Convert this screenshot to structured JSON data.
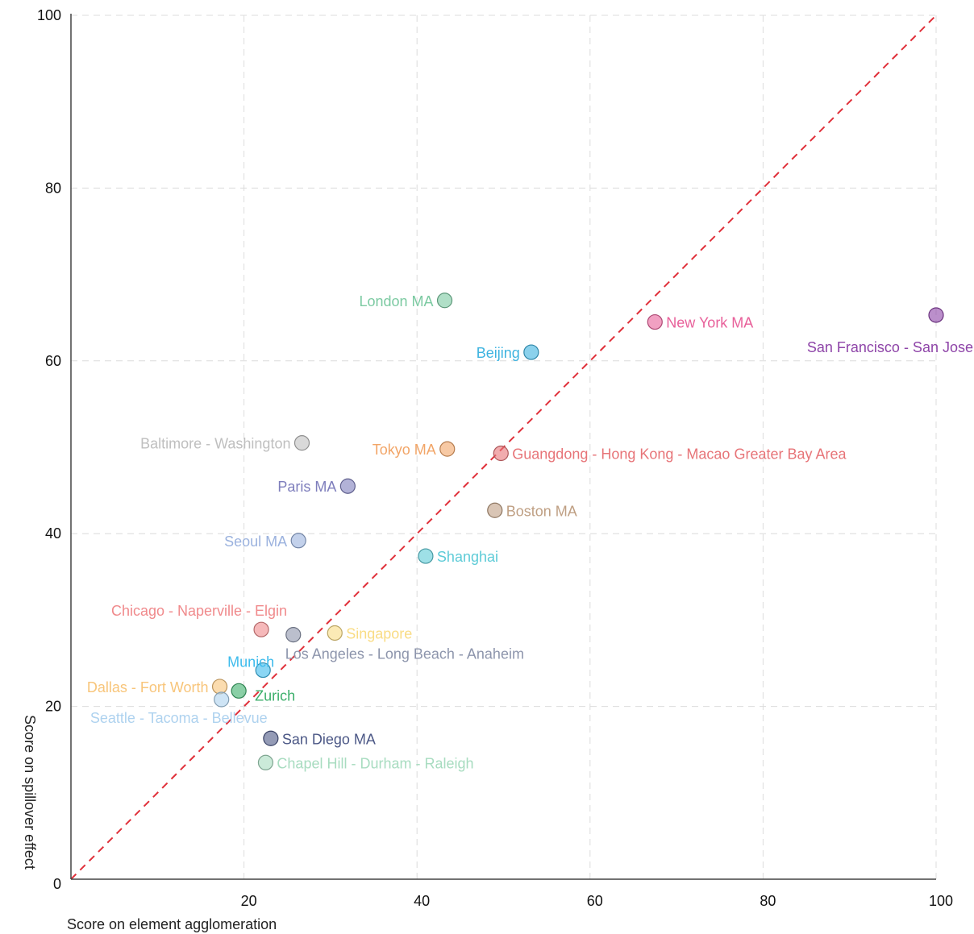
{
  "chart_data": {
    "type": "scatter",
    "title": "",
    "xlabel": "Score on element agglomeration",
    "ylabel": "Score on spillover effect",
    "xlim": [
      0,
      100
    ],
    "ylim": [
      0,
      100
    ],
    "x_ticks": [
      20,
      40,
      60,
      80,
      100
    ],
    "y_ticks": [
      0,
      20,
      40,
      60,
      80,
      100
    ],
    "grid": true,
    "reference_line": {
      "from": [
        0,
        0
      ],
      "to": [
        100,
        100
      ],
      "color": "#e0303a",
      "style": "dashed"
    },
    "points": [
      {
        "label": "San Francisco - San Jose",
        "x": 100,
        "y": 65.3,
        "color": "#8e44a8",
        "label_pos": "below-left"
      },
      {
        "label": "New York MA",
        "x": 67.5,
        "y": 64.5,
        "color": "#e8609a",
        "label_pos": "right"
      },
      {
        "label": "London MA",
        "x": 43.2,
        "y": 67.0,
        "color": "#7ccaa2",
        "label_pos": "left"
      },
      {
        "label": "Beijing",
        "x": 53.2,
        "y": 61.0,
        "color": "#3db3e0",
        "label_pos": "left"
      },
      {
        "label": "Baltimore - Washington",
        "x": 26.7,
        "y": 50.5,
        "color": "#bfbfbf",
        "label_pos": "left"
      },
      {
        "label": "Tokyo MA",
        "x": 43.5,
        "y": 49.8,
        "color": "#f2a567",
        "label_pos": "left"
      },
      {
        "label": "Guangdong - Hong Kong - Macao Greater Bay Area",
        "x": 49.7,
        "y": 49.3,
        "color": "#e77478",
        "label_pos": "right"
      },
      {
        "label": "Paris MA",
        "x": 32.0,
        "y": 45.5,
        "color": "#7e7ebc",
        "label_pos": "left"
      },
      {
        "label": "Boston MA",
        "x": 49.0,
        "y": 42.7,
        "color": "#bf9f83",
        "label_pos": "right"
      },
      {
        "label": "Seoul MA",
        "x": 26.3,
        "y": 39.2,
        "color": "#9bb2de",
        "label_pos": "left"
      },
      {
        "label": "Shanghai",
        "x": 41.0,
        "y": 37.4,
        "color": "#5dcbd7",
        "label_pos": "right"
      },
      {
        "label": "Chicago - Naperville - Elgin",
        "x": 22.0,
        "y": 28.9,
        "color": "#f08a8c",
        "label_pos": "above"
      },
      {
        "label": "Los Angeles - Long Beach - Anaheim",
        "x": 25.7,
        "y": 28.3,
        "color": "#8d95ac",
        "label_pos": "below-right"
      },
      {
        "label": "Singapore",
        "x": 30.5,
        "y": 28.5,
        "color": "#f9dc84",
        "label_pos": "right"
      },
      {
        "label": "Munich",
        "x": 22.2,
        "y": 24.2,
        "color": "#3dbbec",
        "label_pos": "above-left"
      },
      {
        "label": "Dallas - Fort Worth",
        "x": 17.2,
        "y": 22.3,
        "color": "#f8c57a",
        "label_pos": "left"
      },
      {
        "label": "Zurich",
        "x": 19.4,
        "y": 21.8,
        "color": "#3caf6b",
        "label_pos": "below-right"
      },
      {
        "label": "Seattle - Tacoma - Bellevue",
        "x": 17.4,
        "y": 20.8,
        "color": "#aed2ef",
        "label_pos": "below"
      },
      {
        "label": "San Diego MA",
        "x": 23.1,
        "y": 16.3,
        "color": "#4c5886",
        "label_pos": "right"
      },
      {
        "label": "Chapel Hill - Durham - Raleigh",
        "x": 22.5,
        "y": 13.5,
        "color": "#a8dcc0",
        "label_pos": "right"
      }
    ]
  }
}
